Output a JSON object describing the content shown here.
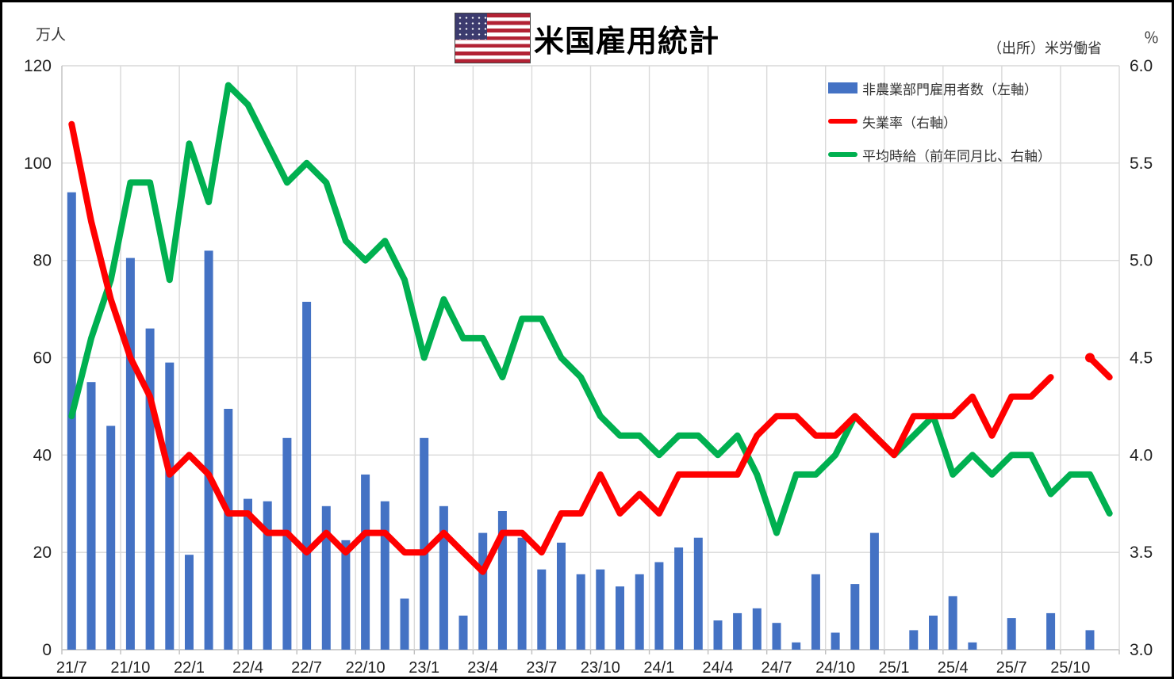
{
  "title": "米国雇用統計",
  "source": "（出所）米労働省",
  "left_axis_unit": "万人",
  "right_axis_unit": "％",
  "legend": [
    {
      "label": "非農業部門雇用者数（左軸）",
      "color": "#4472C4",
      "type": "bar"
    },
    {
      "label": "失業率（右軸）",
      "color": "#FF0000",
      "type": "line"
    },
    {
      "label": "平均時給（前年同月比、右軸）",
      "color": "#00B050",
      "type": "line"
    }
  ],
  "colors": {
    "bar": "#4472C4",
    "unemployment": "#FF0000",
    "wage": "#00B050",
    "grid": "#D9D9D9",
    "axis": "#BFBFBF"
  },
  "chart_data": {
    "type": "combo-bar-line",
    "title": "米国雇用統計",
    "grid": true,
    "legend_position": "top-right",
    "left_ylim": [
      0,
      120
    ],
    "right_ylim": [
      3.0,
      6.0
    ],
    "left_ticks": [
      0,
      20,
      40,
      60,
      80,
      100,
      120
    ],
    "right_ticks": [
      "3.0",
      "3.5",
      "4.0",
      "4.5",
      "5.0",
      "5.5",
      "6.0"
    ],
    "x_label_every": 3,
    "categories": [
      "21/7",
      "21/8",
      "21/9",
      "21/10",
      "21/11",
      "21/12",
      "22/1",
      "22/2",
      "22/3",
      "22/4",
      "22/5",
      "22/6",
      "22/7",
      "22/8",
      "22/9",
      "22/10",
      "22/11",
      "22/12",
      "23/1",
      "23/2",
      "23/3",
      "23/4",
      "23/5",
      "23/6",
      "23/7",
      "23/8",
      "23/9",
      "23/10",
      "23/11",
      "23/12",
      "24/1",
      "24/2",
      "24/3",
      "24/4",
      "24/5",
      "24/6",
      "24/7",
      "24/8",
      "24/9",
      "24/10",
      "24/11",
      "24/12",
      "25/1",
      "25/2",
      "25/3",
      "25/4",
      "25/5",
      "25/6",
      "25/7",
      "25/8",
      "25/9",
      "25/10",
      "25/11",
      "25/12"
    ],
    "series": [
      {
        "name": "非農業部門雇用者数（左軸）",
        "type": "bar",
        "axis": "left",
        "unit": "万人",
        "values": [
          94,
          55,
          46,
          80.5,
          66,
          59,
          19.5,
          82,
          49.5,
          31,
          30.5,
          43.5,
          71.5,
          29.5,
          22.5,
          36,
          30.5,
          10.5,
          43.5,
          29.5,
          7,
          24,
          28.5,
          23,
          16.5,
          22,
          15.5,
          16.5,
          13,
          15.5,
          18,
          21,
          23,
          6,
          7.5,
          8.5,
          5.5,
          1.5,
          15.5,
          3.5,
          13.5,
          24,
          null,
          4,
          7,
          11,
          1.5,
          null,
          6.5,
          null,
          7.5,
          null,
          4,
          null
        ]
      },
      {
        "name": "失業率（右軸）",
        "type": "line",
        "axis": "right",
        "unit": "%",
        "marker_indexes": [
          52
        ],
        "values": [
          5.7,
          5.2,
          4.8,
          4.5,
          4.3,
          3.9,
          4.0,
          3.9,
          3.7,
          3.7,
          3.6,
          3.6,
          3.5,
          3.6,
          3.5,
          3.6,
          3.6,
          3.5,
          3.5,
          3.6,
          3.5,
          3.4,
          3.6,
          3.6,
          3.5,
          3.7,
          3.7,
          3.9,
          3.7,
          3.8,
          3.7,
          3.9,
          3.9,
          3.9,
          3.9,
          4.1,
          4.2,
          4.2,
          4.1,
          4.1,
          4.2,
          4.1,
          4.0,
          4.2,
          4.2,
          4.2,
          4.3,
          4.1,
          4.3,
          4.3,
          4.4,
          null,
          4.5,
          4.4
        ]
      },
      {
        "name": "平均時給（前年同月比、右軸）",
        "type": "line",
        "axis": "right",
        "unit": "%",
        "marker_indexes": [],
        "values": [
          4.2,
          4.6,
          4.9,
          5.4,
          5.4,
          4.9,
          5.6,
          5.3,
          5.9,
          5.8,
          5.6,
          5.4,
          5.5,
          5.4,
          5.1,
          5.0,
          5.1,
          4.9,
          4.5,
          4.8,
          4.6,
          4.6,
          4.4,
          4.7,
          4.7,
          4.5,
          4.4,
          4.2,
          4.1,
          4.1,
          4.0,
          4.1,
          4.1,
          4.0,
          4.1,
          3.9,
          3.6,
          3.9,
          3.9,
          4.0,
          4.2,
          4.1,
          4.0,
          4.1,
          4.2,
          3.9,
          4.0,
          3.9,
          4.0,
          4.0,
          3.8,
          3.9,
          3.9,
          3.7
        ]
      }
    ]
  }
}
